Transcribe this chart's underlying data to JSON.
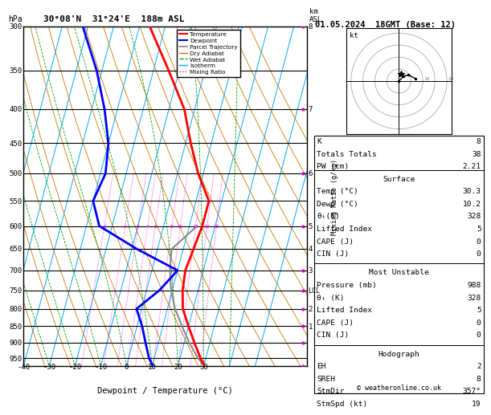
{
  "title_left": "30°08'N  31°24'E  188m ASL",
  "title_right": "01.05.2024  18GMT (Base: 12)",
  "xlabel": "Dewpoint / Temperature (°C)",
  "ylabel_left": "hPa",
  "pmin": 300,
  "pmax": 975,
  "skew_factor": 35,
  "temp_range": [
    -40,
    35
  ],
  "pressure_levels": [
    300,
    350,
    400,
    450,
    500,
    550,
    600,
    650,
    700,
    750,
    800,
    850,
    900,
    950
  ],
  "temp_profile_p": [
    975,
    950,
    900,
    850,
    800,
    750,
    700,
    650,
    600,
    550,
    500,
    450,
    400,
    350,
    300
  ],
  "temp_profile_t": [
    30.3,
    28.0,
    24.0,
    20.0,
    16.0,
    14.0,
    13.0,
    14.0,
    15.0,
    15.0,
    8.0,
    2.0,
    -4.0,
    -14.0,
    -26.0
  ],
  "dewp_profile_p": [
    975,
    950,
    900,
    850,
    800,
    750,
    700,
    650,
    600,
    550,
    500,
    450,
    400,
    350,
    300
  ],
  "dewp_profile_t": [
    10.2,
    8.0,
    5.0,
    2.0,
    -2.0,
    5.0,
    10.0,
    -8.0,
    -25.0,
    -30.0,
    -28.0,
    -30.0,
    -35.0,
    -42.0,
    -52.0
  ],
  "parcel_p": [
    975,
    950,
    900,
    850,
    800,
    750,
    700,
    650,
    600
  ],
  "parcel_t": [
    30.3,
    27.0,
    22.0,
    17.5,
    13.0,
    9.5,
    7.0,
    5.5,
    13.0
  ],
  "km_ticks": {
    "8": 300,
    "7": 400,
    "6": 500,
    "5": 600,
    "4": 650,
    "3": 700,
    "2": 800,
    "1": 850
  },
  "mixing_ratio_values": [
    1,
    2,
    3,
    4,
    5,
    8,
    10,
    15,
    20,
    25
  ],
  "bg_color": "#ffffff",
  "temp_color": "#ff0000",
  "dewp_color": "#0000ff",
  "parcel_color": "#888888",
  "dry_adiabat_color": "#cc7700",
  "wet_adiabat_color": "#00aa00",
  "isotherm_color": "#00aaff",
  "mixing_ratio_color": "#ff00ff",
  "stats_K": "8",
  "stats_TT": "38",
  "stats_PW": "2.21",
  "surf_temp": "30.3",
  "surf_dewp": "10.2",
  "surf_thetae": "328",
  "surf_li": "5",
  "surf_cape": "0",
  "surf_cin": "0",
  "mu_pres": "988",
  "mu_thetae": "328",
  "mu_li": "5",
  "mu_cape": "0",
  "mu_cin": "0",
  "hodo_eh": "2",
  "hodo_sreh": "8",
  "hodo_stmdir": "357°",
  "hodo_stmspd": "19",
  "hodo_points": [
    [
      0,
      0
    ],
    [
      2,
      2
    ],
    [
      4,
      2.5
    ],
    [
      7,
      1
    ]
  ],
  "copyright": "© weatheronline.co.uk"
}
